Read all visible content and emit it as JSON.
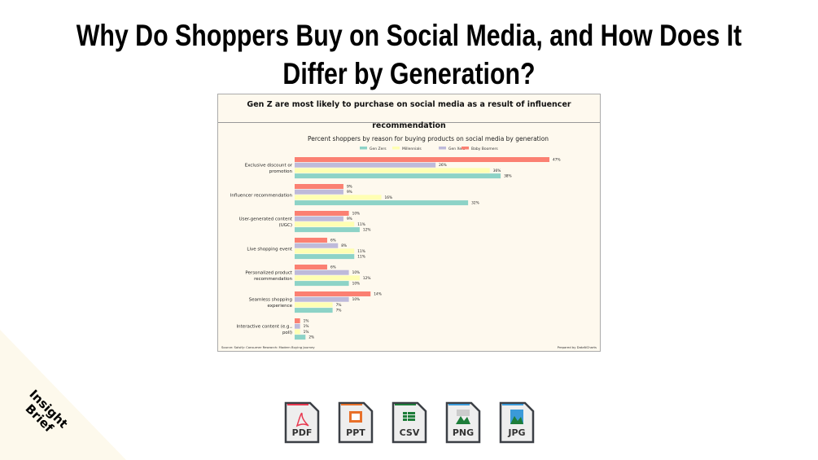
{
  "page_title": "Why Do Shoppers Buy on Social Media, and How Does It Differ by Generation?",
  "brand": {
    "line1": "Insight",
    "line2": "Brief"
  },
  "card": {
    "headline": "Gen Z are most likely to purchase on social media as a result of influencer recommendation",
    "source": "Source: Salsify: Consumer Research: Modern Buying Journey",
    "credit": "Prepared by DataNCharts"
  },
  "chart_data": {
    "type": "bar",
    "orientation": "horizontal",
    "title": "Percent shoppers by reason for buying products on social media by generation",
    "legend_position": "top",
    "categories": [
      "Exclusive discount or promotion",
      "Influencer recommendation",
      "User-generated content (UGC)",
      "Live shopping event",
      "Personalized product recommendation",
      "Seamless shopping experience",
      "Interactive content (e.g., poll)"
    ],
    "series": [
      {
        "name": "Gen Zers",
        "color": "#8dd3c7",
        "values": [
          38,
          32,
          12,
          11,
          10,
          7,
          2
        ]
      },
      {
        "name": "Millennials",
        "color": "#ffffb3",
        "values": [
          36,
          16,
          11,
          11,
          12,
          7,
          1
        ]
      },
      {
        "name": "Gen Xers",
        "color": "#bebada",
        "values": [
          26,
          9,
          9,
          8,
          10,
          10,
          1
        ]
      },
      {
        "name": "Baby Boomers",
        "color": "#fb8072",
        "values": [
          47,
          9,
          10,
          6,
          6,
          14,
          1
        ]
      }
    ],
    "unit": "%",
    "grid": false
  },
  "downloads": [
    {
      "label": "PDF",
      "color": "#e8384f",
      "icon": "pdf-icon"
    },
    {
      "label": "PPT",
      "color": "#e8702a",
      "icon": "ppt-icon"
    },
    {
      "label": "CSV",
      "color": "#1e7d3a",
      "icon": "csv-icon"
    },
    {
      "label": "PNG",
      "color": "#3a9ad9",
      "icon": "png-icon"
    },
    {
      "label": "JPG",
      "color": "#3a9ad9",
      "icon": "jpg-icon"
    }
  ]
}
